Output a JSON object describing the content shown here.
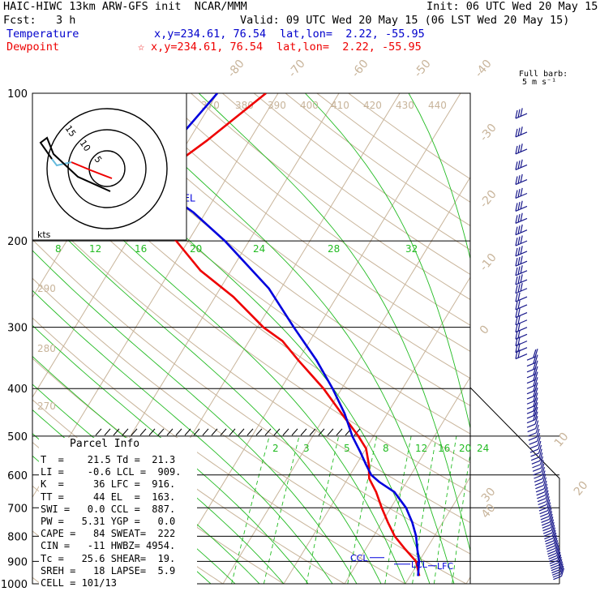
{
  "header": {
    "line1_left": "HAIC-HIWC 13km ARW-GFS init  NCAR/MMM",
    "line1_right": "Init: 06 UTC Wed 20 May 15",
    "line2_left": "Fcst:   3 h",
    "line2_right": "Valid: 09 UTC Wed 20 May 15 (06 LST Wed 20 May 15)",
    "temp_label": "Temperature",
    "temp_xy": "x,y=234.61, 76.54",
    "temp_latlon": "lat,lon=  2.22, -55.95",
    "dew_label": "Dewpoint",
    "dew_star": "☆",
    "dew_xy": "x,y=234.61, 76.54",
    "dew_latlon": "lat,lon=  2.22, -55.95"
  },
  "barb_legend": {
    "line1": "Full barb:",
    "line2": "5 m s⁻¹"
  },
  "colors": {
    "temperature": "#ee0000",
    "parcel": "#0000dd",
    "isotherm": "#c8b49a",
    "mixing_ratio": "#22bb22",
    "barb": "#1a1a8c"
  },
  "chart_data": {
    "type": "line",
    "title": "",
    "ylabel": "",
    "y_scale": "log",
    "ylim": [
      1000,
      100
    ],
    "pressure_ticks": [
      "100",
      "200",
      "300",
      "400",
      "500",
      "600",
      "700",
      "800",
      "900",
      "1000"
    ],
    "skewed_isotherm_labels": [
      "-80",
      "-70",
      "-60",
      "-50",
      "-40",
      "-30",
      "-20",
      "-10",
      "0",
      "10",
      "20",
      "30",
      "40"
    ],
    "theta_labels": [
      "370",
      "380",
      "390",
      "400",
      "410",
      "420",
      "430",
      "440",
      "290",
      "280",
      "270"
    ],
    "mixing_ratio_labels_top": [
      "8",
      "12",
      "16",
      "20",
      "24",
      "28",
      "32"
    ],
    "mixing_ratio_labels_low": [
      "2",
      "3",
      "5",
      "8",
      "12",
      "16",
      "20",
      "24"
    ],
    "series": [
      {
        "name": "Temperature",
        "p": [
          964,
          900,
          850,
          800,
          750,
          700,
          650,
          610,
          570,
          530,
          500,
          450,
          400,
          350,
          320,
          300,
          260,
          230,
          200,
          180,
          164,
          150,
          140,
          125,
          100
        ],
        "t": [
          21.5,
          19.5,
          16.5,
          13.5,
          11,
          8.5,
          6,
          3.5,
          2,
          0,
          -2.5,
          -7.5,
          -13,
          -20,
          -24.5,
          -29,
          -37,
          -45,
          -52,
          -58,
          -63,
          -63,
          -60,
          -57,
          -52
        ]
      },
      {
        "name": "",
        "p": [
          964,
          900,
          850,
          800,
          750,
          700,
          650,
          620,
          600,
          570,
          540,
          500,
          450,
          400,
          350,
          300,
          250,
          200,
          175,
          163,
          150,
          140,
          125,
          100
        ],
        "t": [
          21.3,
          20,
          18.5,
          17,
          15,
          12.5,
          9,
          5.5,
          3.5,
          1.5,
          -0.5,
          -3.5,
          -7,
          -11.5,
          -17,
          -24,
          -32,
          -44,
          -52,
          -57,
          -63,
          -63,
          -62,
          -60
        ]
      }
    ],
    "markers": [
      "EL",
      "CCL",
      "LCL",
      "LFC"
    ],
    "hodograph": {
      "unit": "kts",
      "rings": [
        "5",
        "10",
        "15"
      ]
    },
    "parcel_info": {
      "title": "Parcel Info",
      "rows": [
        "T  =    21.5 Td =  21.3",
        "LI =    -0.6 LCL =  909.",
        "K  =     36 LFC =  916.",
        "TT =     44 EL  =  163.",
        "SWI =   0.0 CCL =  887.",
        "PW =   5.31 YGP =   0.0",
        "CAPE =   84 SWEAT=  222",
        "CIN =   -11 HWBZ= 4954.",
        "Tc =   25.6 SHEAR=  19.",
        "SREH =   18 LAPSE=  5.9",
        "CELL = 101/13"
      ]
    }
  }
}
